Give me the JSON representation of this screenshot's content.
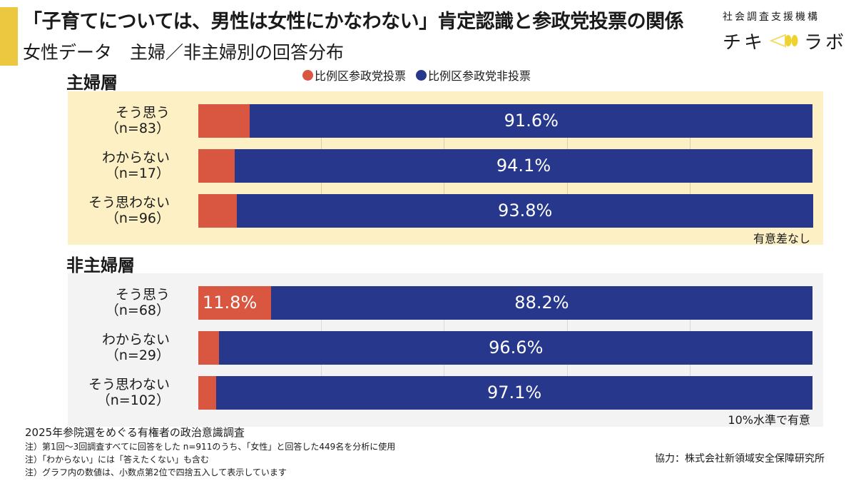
{
  "header": {
    "title": "「子育てについては、男性は女性にかなわない」肯定認識と参政党投票の関係",
    "subtitle": "女性データ　主婦／非主婦別の回答分布",
    "org_name": "社会調査支援機構",
    "logo_left": "チキ",
    "logo_right": "ラボ",
    "logo_icon": "megaphone-icon"
  },
  "legend": [
    {
      "label": "比例区参政党投票",
      "color": "#d95640"
    },
    {
      "label": "比例区参政党非投票",
      "color": "#27388c"
    }
  ],
  "colors": {
    "vote": "#d95640",
    "nonvote": "#27388c",
    "accent": "#ecc840",
    "panel_housewife": "#fdf0c4",
    "panel_non_housewife": "#f3f3f3"
  },
  "chart_data": {
    "type": "bar",
    "orientation": "horizontal-stacked-100",
    "title": "「子育てについては、男性は女性にかなわない」肯定認識と参政党投票の関係",
    "subtitle": "女性データ　主婦／非主婦別の回答分布",
    "xlim": [
      0,
      100
    ],
    "x_gridlines": [
      20,
      40,
      60,
      80
    ],
    "legend_position": "top",
    "series_names": [
      "比例区参政党投票",
      "比例区参政党非投票"
    ],
    "groups": [
      {
        "name": "主婦層",
        "significance": "有意差なし",
        "rows": [
          {
            "label": "そう思う",
            "n": "（n=83）",
            "values": [
              8.4,
              91.6
            ],
            "labels": [
              "8.4%",
              "91.6%"
            ]
          },
          {
            "label": "わからない",
            "n": "（n=17）",
            "values": [
              5.9,
              94.1
            ],
            "labels": [
              "5.9%",
              "94.1%"
            ]
          },
          {
            "label": "そう思わない",
            "n": "（n=96）",
            "values": [
              6.3,
              93.8
            ],
            "labels": [
              "6.3%",
              "93.8%"
            ]
          }
        ]
      },
      {
        "name": "非主婦層",
        "significance": "10%水準で有意",
        "rows": [
          {
            "label": "そう思う",
            "n": "（n=68）",
            "values": [
              11.8,
              88.2
            ],
            "labels": [
              "11.8%",
              "88.2%"
            ]
          },
          {
            "label": "わからない",
            "n": "（n=29）",
            "values": [
              3.4,
              96.6
            ],
            "labels": [
              "3.4%",
              "96.6%"
            ]
          },
          {
            "label": "そう思わない",
            "n": "（n=102）",
            "values": [
              2.9,
              97.1
            ],
            "labels": [
              "2.9%",
              "97.1%"
            ]
          }
        ]
      }
    ]
  },
  "footer": {
    "survey": "2025年参院選をめぐる有権者の政治意識調査",
    "notes": [
      "注）第1回～3回調査すべてに回答をした n=911のうち、「女性」と回答した449名を分析に使用",
      "注）「わからない」には「答えたくない」も含む",
      "注）グラフ内の数値は、小数点第2位で四捨五入して表示しています"
    ],
    "credit": "協力：株式会社新領域安全保障研究所"
  }
}
